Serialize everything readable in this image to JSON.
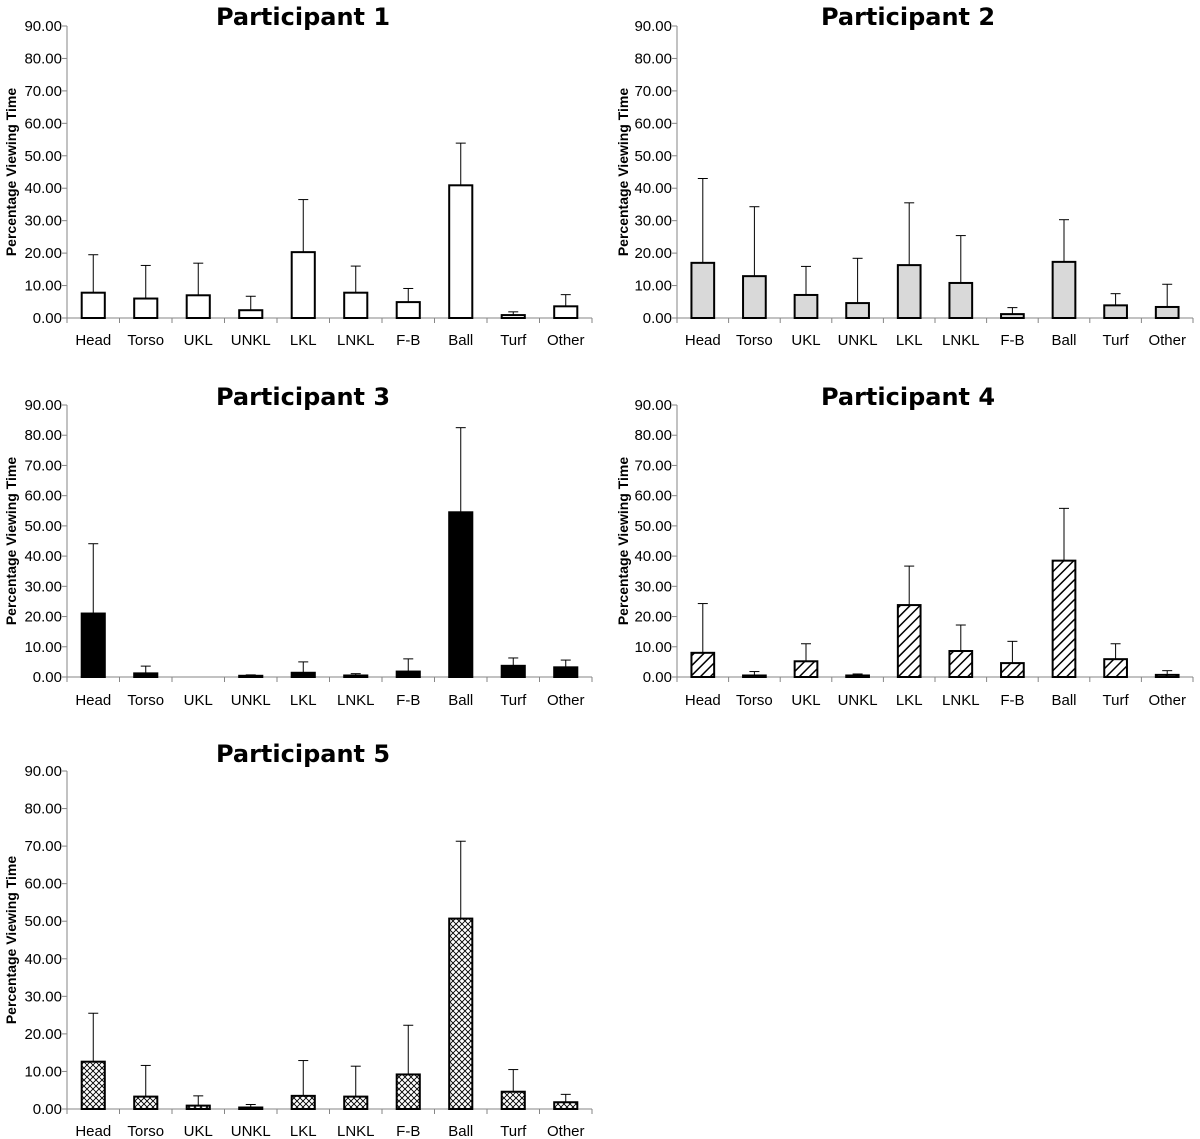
{
  "chart_data": [
    {
      "type": "bar",
      "title": "Participant 1",
      "ylabel": "Percentage Viewing Time",
      "categories": [
        "Head",
        "Torso",
        "UKL",
        "UNKL",
        "LKL",
        "LNKL",
        "F-B",
        "Ball",
        "Turf",
        "Other"
      ],
      "values": [
        7.8,
        6.0,
        7.0,
        2.4,
        20.3,
        7.8,
        4.9,
        40.9,
        0.9,
        3.6
      ],
      "error_plus": [
        11.7,
        10.2,
        9.9,
        4.3,
        16.2,
        8.2,
        4.2,
        13.0,
        1.0,
        3.6
      ],
      "ylim": [
        0,
        90
      ],
      "yticks": [
        "0.00",
        "10.00",
        "20.00",
        "30.00",
        "40.00",
        "50.00",
        "60.00",
        "70.00",
        "80.00",
        "90.00"
      ],
      "fill": "white",
      "grid": false
    },
    {
      "type": "bar",
      "title": "Participant 2",
      "ylabel": "Percentage Viewing Time",
      "categories": [
        "Head",
        "Torso",
        "UKL",
        "UNKL",
        "LKL",
        "LNKL",
        "F-B",
        "Ball",
        "Turf",
        "Other"
      ],
      "values": [
        17.0,
        12.9,
        7.1,
        4.6,
        16.3,
        10.8,
        1.2,
        17.3,
        3.9,
        3.4
      ],
      "error_plus": [
        26.0,
        21.4,
        8.8,
        13.8,
        19.2,
        14.6,
        2.0,
        13.0,
        3.6,
        7.0
      ],
      "ylim": [
        0,
        90
      ],
      "yticks": [
        "0.00",
        "10.00",
        "20.00",
        "30.00",
        "40.00",
        "50.00",
        "60.00",
        "70.00",
        "80.00",
        "90.00"
      ],
      "fill": "lightgray",
      "grid": false
    },
    {
      "type": "bar",
      "title": "Participant 3",
      "ylabel": "Percentage Viewing Time",
      "categories": [
        "Head",
        "Torso",
        "UKL",
        "UNKL",
        "LKL",
        "LNKL",
        "F-B",
        "Ball",
        "Turf",
        "Other"
      ],
      "values": [
        21.0,
        1.2,
        0.0,
        0.4,
        1.4,
        0.5,
        1.8,
        54.5,
        3.7,
        3.2
      ],
      "error_plus": [
        23.1,
        2.4,
        0.0,
        0.3,
        3.6,
        0.6,
        4.2,
        28.0,
        2.6,
        2.4
      ],
      "ylim": [
        0,
        90
      ],
      "yticks": [
        "0.00",
        "10.00",
        "20.00",
        "30.00",
        "40.00",
        "50.00",
        "60.00",
        "70.00",
        "80.00",
        "90.00"
      ],
      "fill": "black",
      "grid": false
    },
    {
      "type": "bar",
      "title": "Participant 4",
      "ylabel": "Percentage Viewing Time",
      "categories": [
        "Head",
        "Torso",
        "UKL",
        "UNKL",
        "LKL",
        "LNKL",
        "F-B",
        "Ball",
        "Turf",
        "Other"
      ],
      "values": [
        8.0,
        0.5,
        5.2,
        0.5,
        23.8,
        8.6,
        4.6,
        38.5,
        5.9,
        0.7
      ],
      "error_plus": [
        16.3,
        1.3,
        5.8,
        0.5,
        12.9,
        8.6,
        7.2,
        17.3,
        5.1,
        1.4
      ],
      "ylim": [
        0,
        90
      ],
      "yticks": [
        "0.00",
        "10.00",
        "20.00",
        "30.00",
        "40.00",
        "50.00",
        "60.00",
        "70.00",
        "80.00",
        "90.00"
      ],
      "fill": "diagonal-hatch",
      "grid": false
    },
    {
      "type": "bar",
      "title": "Participant 5",
      "ylabel": "Percentage Viewing Time",
      "categories": [
        "Head",
        "Torso",
        "UKL",
        "UNKL",
        "LKL",
        "LNKL",
        "F-B",
        "Ball",
        "Turf",
        "Other"
      ],
      "values": [
        12.6,
        3.3,
        0.9,
        0.4,
        3.5,
        3.3,
        9.2,
        50.7,
        4.6,
        1.8
      ],
      "error_plus": [
        12.9,
        8.3,
        2.6,
        0.8,
        9.4,
        8.1,
        13.1,
        20.6,
        5.9,
        2.1
      ],
      "ylim": [
        0,
        90
      ],
      "yticks": [
        "0.00",
        "10.00",
        "20.00",
        "30.00",
        "40.00",
        "50.00",
        "60.00",
        "70.00",
        "80.00",
        "90.00"
      ],
      "fill": "crosshatch",
      "grid": false
    }
  ]
}
